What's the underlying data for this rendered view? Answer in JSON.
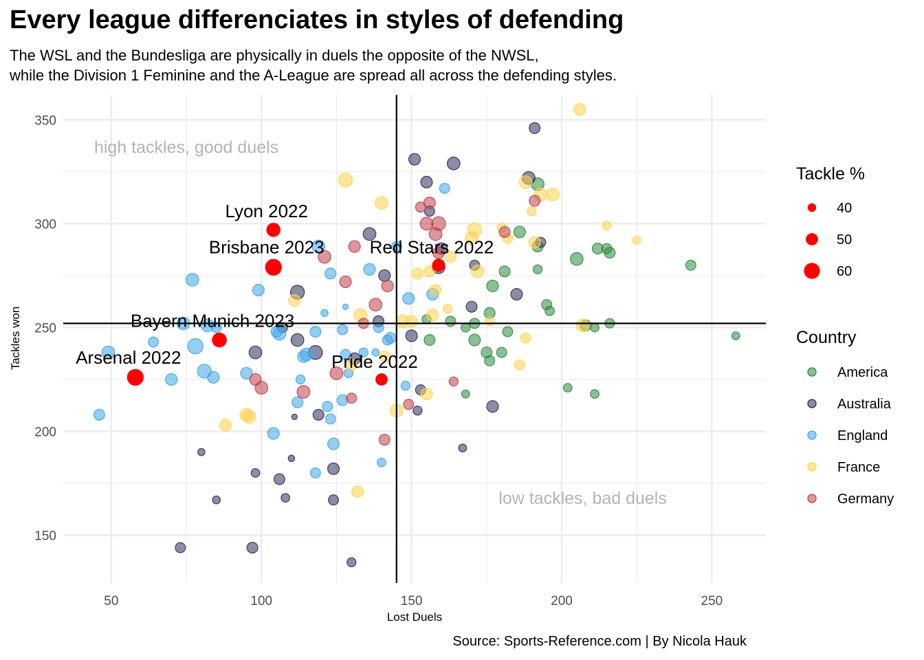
{
  "title": "Every league differenciates in styles of defending",
  "subtitle_lines": [
    "The WSL and the Bundesliga are physically in duels the opposite of the NWSL,",
    "while the Division 1 Feminine and the A-League are spread all across the defending styles."
  ],
  "caption": "Source: Sports-Reference.com | By Nicola Hauk",
  "chart_data": {
    "type": "scatter",
    "xlabel": "Lost Duels",
    "ylabel": "Tackles won",
    "xlim": [
      34,
      268
    ],
    "ylim": [
      127,
      362
    ],
    "x_ticks": [
      50,
      100,
      150,
      200,
      250
    ],
    "y_ticks": [
      150,
      200,
      250,
      300,
      350
    ],
    "grid": true,
    "reference_lines": {
      "vertical_x": 145,
      "horizontal_y": 252
    },
    "quadrant_labels": [
      {
        "text": "high tackles, good duels",
        "x": 75,
        "y": 337
      },
      {
        "text": "low tackles, bad duels",
        "x": 207,
        "y": 168
      }
    ],
    "highlight_color": "#ff0000",
    "highlighted": [
      {
        "label": "Lyon 2022",
        "x": 104,
        "y": 297,
        "tackle_pct": 55
      },
      {
        "label": "Brisbane 2023",
        "x": 104,
        "y": 279,
        "tackle_pct": 62
      },
      {
        "label": "Red Stars 2022",
        "x": 159,
        "y": 280,
        "tackle_pct": 52
      },
      {
        "label": "Bayern Munich 2023",
        "x": 86,
        "y": 244,
        "tackle_pct": 57
      },
      {
        "label": "Pride 2022",
        "x": 140,
        "y": 225,
        "tackle_pct": 50
      },
      {
        "label": "Arsenal 2022",
        "x": 58,
        "y": 226,
        "tackle_pct": 62
      }
    ],
    "size_legend": {
      "title": "Tackle %",
      "values": [
        40,
        50,
        60
      ]
    },
    "color_legend": {
      "title": "Country"
    },
    "series": [
      {
        "name": "America",
        "color": "#2e8b3e",
        "points": [
          [
            155,
            254,
            45
          ],
          [
            156,
            244,
            50
          ],
          [
            163,
            253,
            48
          ],
          [
            168,
            250,
            45
          ],
          [
            168,
            218,
            42
          ],
          [
            171,
            244,
            52
          ],
          [
            171,
            252,
            48
          ],
          [
            175,
            238,
            50
          ],
          [
            176,
            234,
            48
          ],
          [
            176,
            257,
            50
          ],
          [
            177,
            270,
            52
          ],
          [
            180,
            238,
            48
          ],
          [
            181,
            277,
            50
          ],
          [
            182,
            248,
            48
          ],
          [
            186,
            296,
            52
          ],
          [
            192,
            278,
            45
          ],
          [
            192,
            289,
            50
          ],
          [
            192,
            319,
            55
          ],
          [
            195,
            261,
            48
          ],
          [
            196,
            258,
            46
          ],
          [
            202,
            221,
            44
          ],
          [
            205,
            283,
            55
          ],
          [
            208,
            251,
            50
          ],
          [
            212,
            288,
            50
          ],
          [
            215,
            288,
            48
          ],
          [
            216,
            286,
            50
          ],
          [
            216,
            252,
            46
          ],
          [
            211,
            250,
            44
          ],
          [
            211,
            218,
            44
          ],
          [
            243,
            280,
            48
          ],
          [
            258,
            246,
            42
          ]
        ]
      },
      {
        "name": "Australia",
        "color": "#2d2d5a",
        "points": [
          [
            73,
            144,
            48
          ],
          [
            80,
            190,
            40
          ],
          [
            85,
            167,
            42
          ],
          [
            97,
            144,
            50
          ],
          [
            98,
            180,
            44
          ],
          [
            98,
            238,
            55
          ],
          [
            106,
            177,
            50
          ],
          [
            107,
            250,
            48
          ],
          [
            108,
            168,
            44
          ],
          [
            110,
            187,
            38
          ],
          [
            111,
            207,
            35
          ],
          [
            112,
            267,
            58
          ],
          [
            112,
            244,
            55
          ],
          [
            118,
            238,
            58
          ],
          [
            119,
            208,
            50
          ],
          [
            124,
            182,
            52
          ],
          [
            124,
            167,
            48
          ],
          [
            131,
            235,
            52
          ],
          [
            130,
            137,
            45
          ],
          [
            136,
            295,
            55
          ],
          [
            139,
            253,
            50
          ],
          [
            141,
            275,
            52
          ],
          [
            150,
            246,
            52
          ],
          [
            151,
            331,
            52
          ],
          [
            152,
            210,
            45
          ],
          [
            153,
            220,
            48
          ],
          [
            155,
            320,
            52
          ],
          [
            156,
            306,
            48
          ],
          [
            159,
            279,
            55
          ],
          [
            160,
            288,
            52
          ],
          [
            164,
            329,
            55
          ],
          [
            167,
            192,
            42
          ],
          [
            170,
            260,
            50
          ],
          [
            171,
            280,
            48
          ],
          [
            177,
            212,
            52
          ],
          [
            185,
            266,
            52
          ],
          [
            189,
            322,
            55
          ],
          [
            191,
            346,
            50
          ],
          [
            193,
            291,
            48
          ]
        ]
      },
      {
        "name": "England",
        "color": "#3fa6e6",
        "points": [
          [
            46,
            208,
            50
          ],
          [
            49,
            238,
            55
          ],
          [
            64,
            243,
            48
          ],
          [
            70,
            225,
            52
          ],
          [
            74,
            252,
            55
          ],
          [
            77,
            273,
            55
          ],
          [
            78,
            241,
            62
          ],
          [
            81,
            229,
            58
          ],
          [
            82,
            251,
            55
          ],
          [
            84,
            226,
            52
          ],
          [
            85,
            250,
            48
          ],
          [
            95,
            228,
            52
          ],
          [
            99,
            268,
            52
          ],
          [
            104,
            199,
            52
          ],
          [
            105,
            248,
            50
          ],
          [
            106,
            247,
            55
          ],
          [
            112,
            214,
            50
          ],
          [
            113,
            225,
            45
          ],
          [
            114,
            236,
            52
          ],
          [
            115,
            237,
            55
          ],
          [
            118,
            180,
            48
          ],
          [
            118,
            248,
            50
          ],
          [
            119,
            289,
            55
          ],
          [
            121,
            257,
            40
          ],
          [
            122,
            212,
            48
          ],
          [
            123,
            206,
            48
          ],
          [
            123,
            276,
            50
          ],
          [
            124,
            194,
            52
          ],
          [
            127,
            215,
            50
          ],
          [
            127,
            249,
            48
          ],
          [
            128,
            237,
            48
          ],
          [
            128,
            260,
            35
          ],
          [
            129,
            228,
            45
          ],
          [
            134,
            238,
            45
          ],
          [
            136,
            278,
            52
          ],
          [
            138,
            238,
            40
          ],
          [
            139,
            250,
            48
          ],
          [
            140,
            185,
            44
          ],
          [
            142,
            244,
            48
          ],
          [
            143,
            245,
            50
          ],
          [
            145,
            289,
            48
          ],
          [
            148,
            222,
            45
          ],
          [
            149,
            264,
            52
          ],
          [
            157,
            266,
            52
          ],
          [
            161,
            317,
            48
          ]
        ]
      },
      {
        "name": "France",
        "color": "#ffd24d",
        "points": [
          [
            88,
            203,
            52
          ],
          [
            95,
            208,
            55
          ],
          [
            96,
            207,
            55
          ],
          [
            111,
            263,
            52
          ],
          [
            128,
            321,
            58
          ],
          [
            130,
            232,
            50
          ],
          [
            132,
            171,
            52
          ],
          [
            133,
            256,
            55
          ],
          [
            140,
            310,
            55
          ],
          [
            141,
            236,
            50
          ],
          [
            145,
            210,
            55
          ],
          [
            147,
            253,
            55
          ],
          [
            150,
            253,
            52
          ],
          [
            152,
            276,
            50
          ],
          [
            155,
            218,
            52
          ],
          [
            156,
            277,
            50
          ],
          [
            157,
            256,
            52
          ],
          [
            158,
            268,
            50
          ],
          [
            162,
            259,
            45
          ],
          [
            163,
            284,
            50
          ],
          [
            170,
            293,
            55
          ],
          [
            171,
            297,
            58
          ],
          [
            172,
            277,
            55
          ],
          [
            176,
            253,
            45
          ],
          [
            180,
            298,
            45
          ],
          [
            182,
            293,
            48
          ],
          [
            186,
            232,
            48
          ],
          [
            188,
            245,
            48
          ],
          [
            188,
            320,
            55
          ],
          [
            190,
            306,
            45
          ],
          [
            191,
            291,
            52
          ],
          [
            193,
            314,
            55
          ],
          [
            197,
            314,
            55
          ],
          [
            206,
            355,
            52
          ],
          [
            207,
            251,
            55
          ],
          [
            215,
            299,
            44
          ],
          [
            225,
            292,
            42
          ]
        ]
      },
      {
        "name": "Germany",
        "color": "#c0414b",
        "points": [
          [
            98,
            225,
            52
          ],
          [
            100,
            221,
            55
          ],
          [
            114,
            219,
            55
          ],
          [
            121,
            284,
            55
          ],
          [
            125,
            228,
            55
          ],
          [
            128,
            272,
            52
          ],
          [
            130,
            216,
            48
          ],
          [
            131,
            289,
            52
          ],
          [
            134,
            252,
            48
          ],
          [
            138,
            261,
            55
          ],
          [
            141,
            196,
            50
          ],
          [
            142,
            270,
            52
          ],
          [
            149,
            213,
            48
          ],
          [
            153,
            308,
            48
          ],
          [
            155,
            300,
            55
          ],
          [
            156,
            310,
            52
          ],
          [
            158,
            295,
            55
          ],
          [
            159,
            286,
            52
          ],
          [
            159,
            300,
            58
          ],
          [
            164,
            224,
            45
          ],
          [
            181,
            296,
            50
          ],
          [
            191,
            311,
            50
          ]
        ]
      }
    ]
  }
}
